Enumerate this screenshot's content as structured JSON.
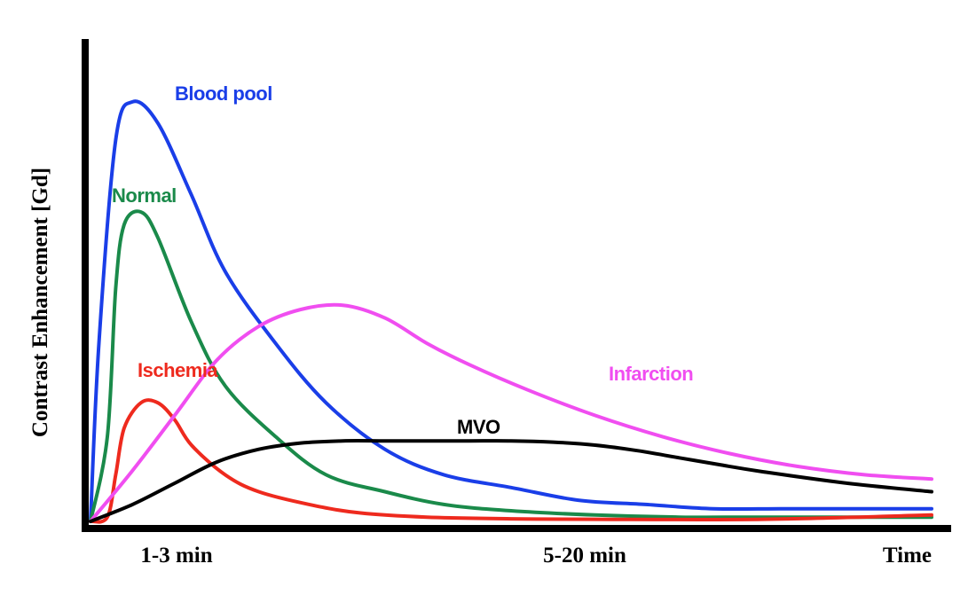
{
  "chart_data": {
    "type": "line",
    "title": "",
    "xlabel": "Time",
    "ylabel": "Contrast Enhancement [Gd]",
    "x_tick_labels": [
      "1-3 min",
      "5-20 min"
    ],
    "xlim": [
      0,
      100
    ],
    "ylim": [
      0,
      100
    ],
    "grid": false,
    "legend": "inline labels",
    "series": [
      {
        "name": "Blood pool",
        "color": "#1a3ee8",
        "x": [
          0,
          1,
          3,
          5,
          8,
          12,
          16,
          22,
          28,
          35,
          42,
          50,
          58,
          66,
          74,
          82,
          90,
          100
        ],
        "y": [
          0,
          42,
          90,
          99,
          94,
          77,
          59,
          42,
          28,
          17,
          11,
          8,
          5,
          4,
          3,
          3,
          3,
          3
        ]
      },
      {
        "name": "Normal",
        "color": "#1a8a4a",
        "x": [
          0,
          2,
          3,
          4,
          6,
          8,
          12,
          16,
          22,
          28,
          35,
          42,
          50,
          60,
          70,
          80,
          100
        ],
        "y": [
          0,
          20,
          55,
          70,
          73,
          67,
          47,
          32,
          20,
          11,
          7,
          4,
          2.5,
          1.5,
          1,
          1,
          1
        ]
      },
      {
        "name": "Ischemia",
        "color": "#ee2a1e",
        "x": [
          0,
          2,
          3,
          4,
          6,
          8,
          10,
          12,
          16,
          20,
          26,
          32,
          40,
          50,
          60,
          80,
          100
        ],
        "y": [
          0,
          1,
          11,
          22,
          28,
          28,
          24,
          18,
          11,
          7,
          4,
          2,
          1,
          0.6,
          0.5,
          0.5,
          1.5
        ]
      },
      {
        "name": "Infarction",
        "color": "#f04ef0",
        "x": [
          0,
          5,
          10,
          15,
          20,
          25,
          30,
          35,
          40,
          45,
          52,
          60,
          68,
          76,
          84,
          92,
          100
        ],
        "y": [
          0,
          12,
          25,
          38,
          46,
          50,
          51,
          48,
          42,
          37,
          31,
          25,
          20,
          16,
          13,
          11,
          10
        ]
      },
      {
        "name": "MVO",
        "color": "#000000",
        "x": [
          0,
          5,
          10,
          15,
          20,
          25,
          30,
          35,
          40,
          45,
          50,
          55,
          60,
          65,
          70,
          75,
          80,
          90,
          100
        ],
        "y": [
          0,
          4,
          9,
          14,
          17,
          18.5,
          19,
          19,
          19,
          19,
          19,
          18.7,
          18,
          16.7,
          15,
          13.3,
          11.7,
          9,
          7
        ]
      }
    ]
  }
}
